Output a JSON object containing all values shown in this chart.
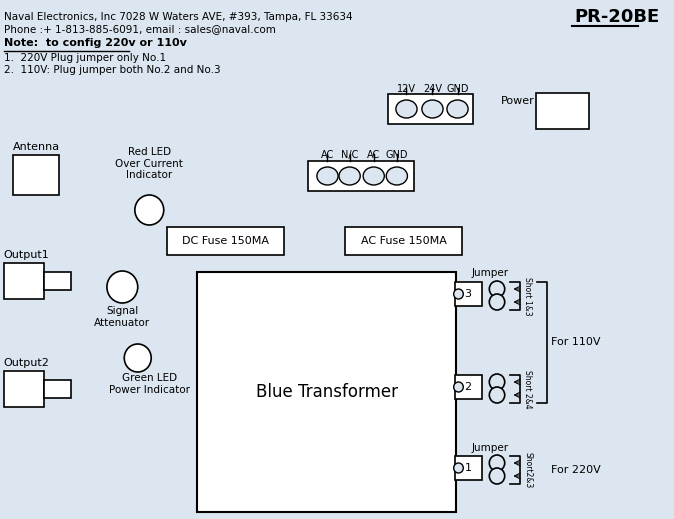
{
  "bg_color": "#dce6f0",
  "title_text": "PR-20BE",
  "header_line1": "Naval Electronics, Inc 7028 W Waters AVE, #393, Tampa, FL 33634",
  "header_line2": "Phone :+ 1-813-885-6091, email : sales@naval.com",
  "note_title": "Note:  to config 220v or 110v",
  "note1": "1.  220V Plug jumper only No.1",
  "note2": "2.  110V: Plug jumper both No.2 and No.3",
  "antenna_label": "Antenna",
  "output1_label": "Output1",
  "output2_label": "Output2",
  "red_led_label": "Red LED\nOver Current\nIndicator",
  "green_led_label": "Green LED\nPower Indicator",
  "signal_att_label": "Signal\nAttenuator",
  "dc_fuse_label": "DC Fuse 150MA",
  "ac_fuse_label": "AC Fuse 150MA",
  "transformer_label": "Blue Transformer",
  "power_label": "Power",
  "jumper_label": "Jumper",
  "short13_label": "Short 1&3",
  "short24_label": "Short 2&4",
  "short23_label": "Short2&3",
  "for110v_label": "For 110V",
  "for220v_label": "For 220V",
  "v12_label": "12V",
  "v24_label": "24V",
  "gnd_label": "GND",
  "ac_label": "AC",
  "nc_label": "N/C",
  "ac2_label": "AC",
  "gnd2_label": "GND"
}
